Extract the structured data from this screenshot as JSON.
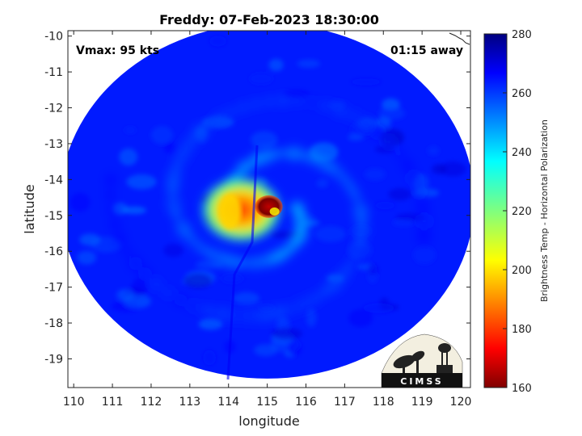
{
  "chart_data": {
    "type": "heatmap",
    "title": "Freddy: 07-Feb-2023 18:30:00",
    "xlabel": "longitude",
    "ylabel": "latitude",
    "xlim": [
      109.85,
      120.25
    ],
    "ylim": [
      -19.8,
      -9.85
    ],
    "x_ticks": [
      "110",
      "111",
      "112",
      "113",
      "114",
      "115",
      "116",
      "117",
      "118",
      "119",
      "120"
    ],
    "y_ticks": [
      "-10",
      "-11",
      "-12",
      "-13",
      "-14",
      "-15",
      "-16",
      "-17",
      "-18",
      "-19"
    ],
    "colorbar": {
      "label": "Brightness Temp - Horizontal Polarization",
      "range": [
        160,
        280
      ],
      "ticks": [
        "280",
        "260",
        "240",
        "220",
        "200",
        "180",
        "160"
      ],
      "colormap": "jet"
    },
    "annotations": {
      "vmax": "Vmax: 95 kts",
      "time_offset": "01:15 away"
    },
    "storm_center": {
      "lon": 115.0,
      "lat": -14.8,
      "min_temp": 165
    },
    "swath": {
      "center_lon": 115.0,
      "center_lat": -14.6,
      "radius_lon": 5.35,
      "radius_lat": 4.95
    },
    "ambient_temp": 262,
    "logo_text": "CIMSS"
  }
}
